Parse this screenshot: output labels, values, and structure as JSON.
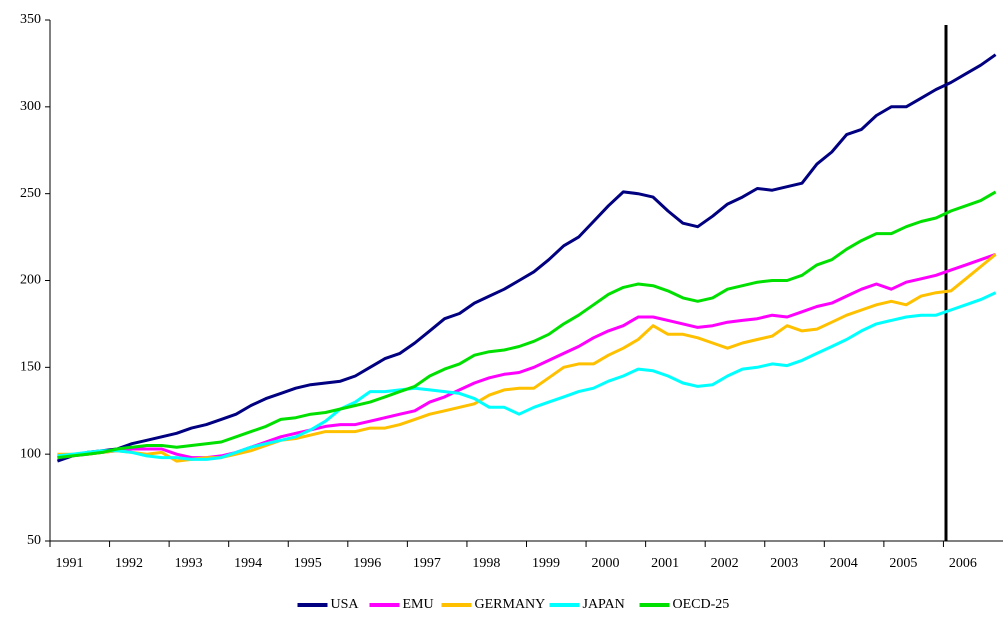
{
  "chart_data": {
    "type": "line",
    "categories": [
      "1991",
      null,
      null,
      null,
      "1992",
      null,
      null,
      null,
      "1993",
      null,
      null,
      null,
      "1994",
      null,
      null,
      null,
      "1995",
      null,
      null,
      null,
      "1996",
      null,
      null,
      null,
      "1997",
      null,
      null,
      null,
      "1998",
      null,
      null,
      null,
      "1999",
      null,
      null,
      null,
      "2000",
      null,
      null,
      null,
      "2001",
      null,
      null,
      null,
      "2002",
      null,
      null,
      null,
      "2003",
      null,
      null,
      null,
      "2004",
      null,
      null,
      null,
      "2005",
      null,
      null,
      null,
      "2006",
      null,
      null,
      null
    ],
    "ylim": [
      50,
      350
    ],
    "yticks": [
      50,
      100,
      150,
      200,
      250,
      300,
      350
    ],
    "grid": false,
    "legend": "bottom",
    "series": [
      {
        "name": "USA",
        "color": "#000080",
        "values": [
          96,
          99,
          101,
          102,
          103,
          106,
          108,
          110,
          112,
          115,
          117,
          120,
          123,
          128,
          132,
          135,
          138,
          140,
          141,
          142,
          145,
          150,
          155,
          158,
          164,
          171,
          178,
          181,
          187,
          191,
          195,
          200,
          205,
          212,
          220,
          225,
          234,
          243,
          251,
          250,
          248,
          240,
          233,
          231,
          237,
          244,
          248,
          253,
          252,
          254,
          256,
          267,
          274,
          284,
          287,
          295,
          300,
          300,
          305,
          310,
          314,
          319,
          324,
          330
        ]
      },
      {
        "name": "EMU",
        "color": "#ff00ff",
        "values": [
          98,
          99,
          100,
          101,
          102,
          103,
          103,
          103,
          100,
          98,
          98,
          99,
          101,
          104,
          107,
          110,
          112,
          114,
          116,
          117,
          117,
          119,
          121,
          123,
          125,
          130,
          133,
          137,
          141,
          144,
          146,
          147,
          150,
          154,
          158,
          162,
          167,
          171,
          174,
          179,
          179,
          177,
          175,
          173,
          174,
          176,
          177,
          178,
          180,
          179,
          182,
          185,
          187,
          191,
          195,
          198,
          195,
          199,
          201,
          203,
          206,
          209,
          212,
          215
        ]
      },
      {
        "name": "GERMANY",
        "color": "#ffc000",
        "values": [
          100,
          100,
          100,
          101,
          102,
          101,
          100,
          101,
          96,
          97,
          98,
          98,
          100,
          102,
          105,
          108,
          109,
          111,
          113,
          113,
          113,
          115,
          115,
          117,
          120,
          123,
          125,
          127,
          129,
          134,
          137,
          138,
          138,
          144,
          150,
          152,
          152,
          157,
          161,
          166,
          174,
          169,
          169,
          167,
          164,
          161,
          164,
          166,
          168,
          174,
          171,
          172,
          176,
          180,
          183,
          186,
          188,
          186,
          191,
          193,
          194,
          201,
          208,
          215
        ]
      },
      {
        "name": "JAPAN",
        "color": "#00ffff",
        "values": [
          99,
          100,
          101,
          102,
          102,
          101,
          99,
          98,
          98,
          97,
          97,
          98,
          101,
          104,
          106,
          108,
          110,
          114,
          119,
          126,
          130,
          136,
          136,
          137,
          138,
          137,
          136,
          135,
          132,
          127,
          127,
          123,
          127,
          130,
          133,
          136,
          138,
          142,
          145,
          149,
          148,
          145,
          141,
          139,
          140,
          145,
          149,
          150,
          152,
          151,
          154,
          158,
          162,
          166,
          171,
          175,
          177,
          179,
          180,
          180,
          183,
          186,
          189,
          193
        ]
      },
      {
        "name": "OECD-25",
        "color": "#00e000",
        "values": [
          98,
          99,
          100,
          101,
          103,
          104,
          105,
          105,
          104,
          105,
          106,
          107,
          110,
          113,
          116,
          120,
          121,
          123,
          124,
          126,
          128,
          130,
          133,
          136,
          139,
          145,
          149,
          152,
          157,
          159,
          160,
          162,
          165,
          169,
          175,
          180,
          186,
          192,
          196,
          198,
          197,
          194,
          190,
          188,
          190,
          195,
          197,
          199,
          200,
          200,
          203,
          209,
          212,
          218,
          223,
          227,
          227,
          231,
          234,
          236,
          240,
          243,
          246,
          251
        ]
      }
    ]
  }
}
